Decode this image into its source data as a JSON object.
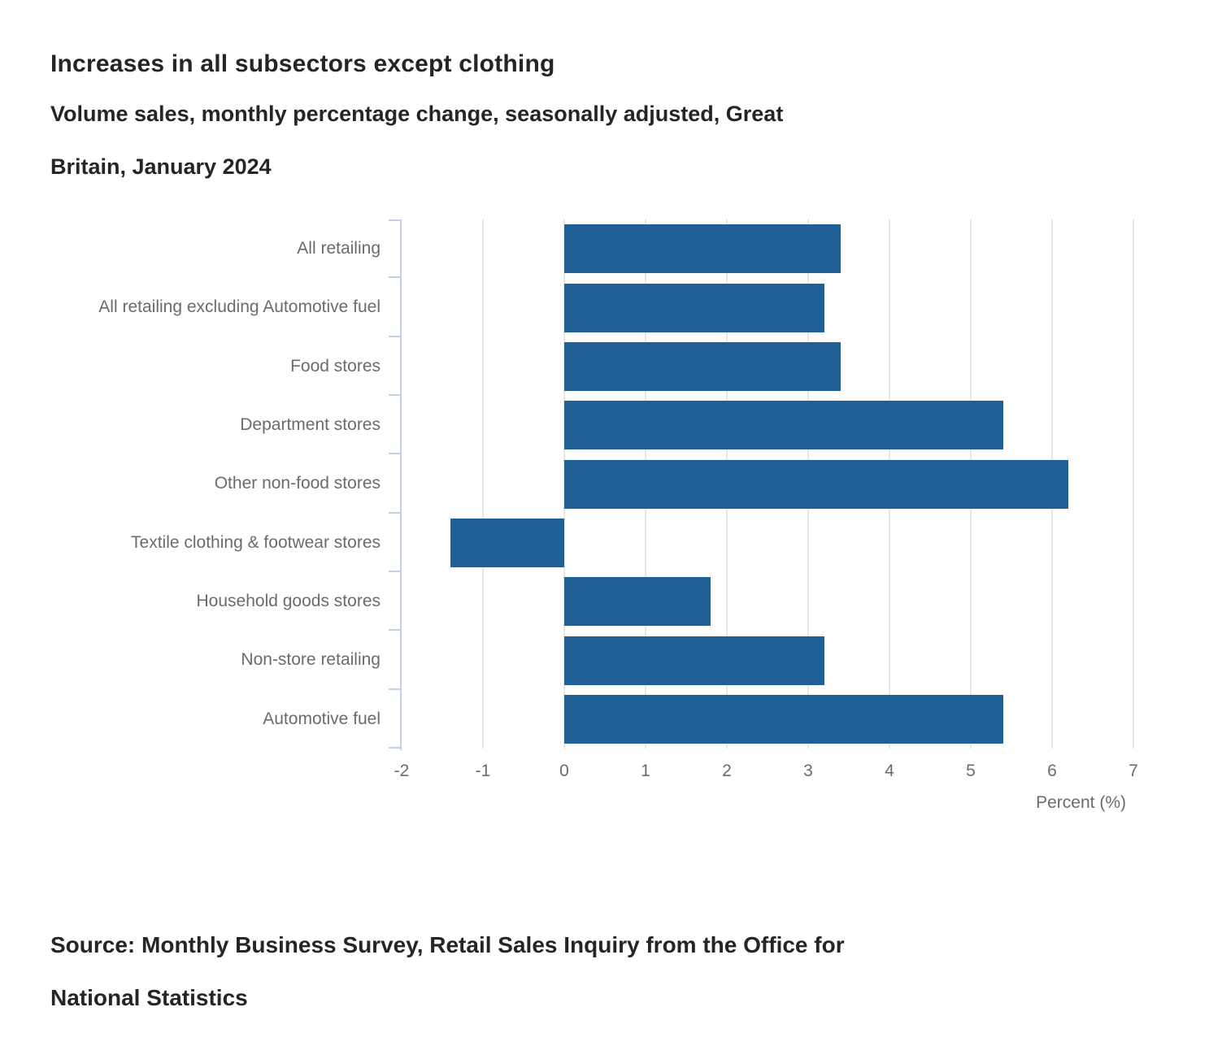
{
  "page": {
    "title": "Increases in all subsectors except clothing",
    "subtitle_lines": [
      "Volume sales, monthly percentage change, seasonally adjusted, Great",
      "Britain, January 2024"
    ],
    "source_lines": [
      "Source: Monthly Business Survey, Retail Sales Inquiry from the Office for",
      "National Statistics"
    ]
  },
  "chart_data": {
    "type": "bar",
    "orientation": "horizontal",
    "title": "Increases in all subsectors except clothing",
    "subtitle": "Volume sales, monthly percentage change, seasonally adjusted, Great Britain, January 2024",
    "source": "Source: Monthly Business Survey, Retail Sales Inquiry from the Office for National Statistics",
    "categories": [
      "All retailing",
      "All retailing excluding Automotive fuel",
      "Food stores",
      "Department stores",
      "Other non-food stores",
      "Textile clothing & footwear stores",
      "Household goods stores",
      "Non-store retailing",
      "Automotive fuel"
    ],
    "values": [
      3.4,
      3.2,
      3.4,
      5.4,
      6.2,
      -1.4,
      1.8,
      3.2,
      5.4
    ],
    "xlabel": "Percent (%)",
    "xlim": [
      -2,
      7
    ],
    "xticks": [
      -2,
      -1,
      0,
      1,
      2,
      3,
      4,
      5,
      6,
      7
    ],
    "grid": "vertical gridlines at each integer, no legend",
    "legend": "none",
    "bar_color": "#206095",
    "axis_color": "#c5cfe5",
    "gridline_color": "#e7e7e7",
    "axis_label_color": "#6b6b6b",
    "text_color": "#252525"
  }
}
